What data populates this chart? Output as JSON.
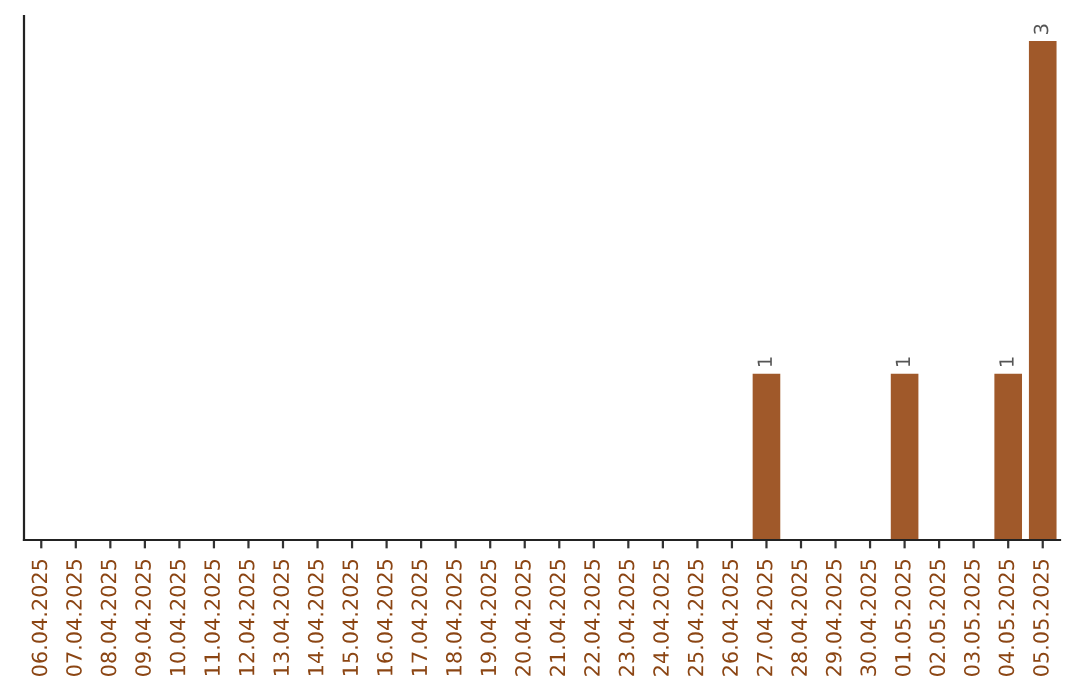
{
  "chart_data": {
    "type": "bar",
    "categories": [
      "06.04.2025",
      "07.04.2025",
      "08.04.2025",
      "09.04.2025",
      "10.04.2025",
      "11.04.2025",
      "12.04.2025",
      "13.04.2025",
      "14.04.2025",
      "15.04.2025",
      "16.04.2025",
      "17.04.2025",
      "18.04.2025",
      "19.04.2025",
      "20.04.2025",
      "21.04.2025",
      "22.04.2025",
      "23.04.2025",
      "24.04.2025",
      "25.04.2025",
      "26.04.2025",
      "27.04.2025",
      "28.04.2025",
      "29.04.2025",
      "30.04.2025",
      "01.05.2025",
      "02.05.2025",
      "03.05.2025",
      "04.05.2025",
      "05.05.2025"
    ],
    "values": [
      null,
      null,
      null,
      null,
      null,
      null,
      null,
      null,
      null,
      null,
      null,
      null,
      null,
      null,
      null,
      null,
      null,
      null,
      null,
      null,
      null,
      1,
      null,
      null,
      null,
      1,
      null,
      null,
      1,
      3
    ],
    "data_labels": true,
    "color": "#a0592a",
    "tick_labels": "x",
    "grid": false,
    "legend": false
  }
}
